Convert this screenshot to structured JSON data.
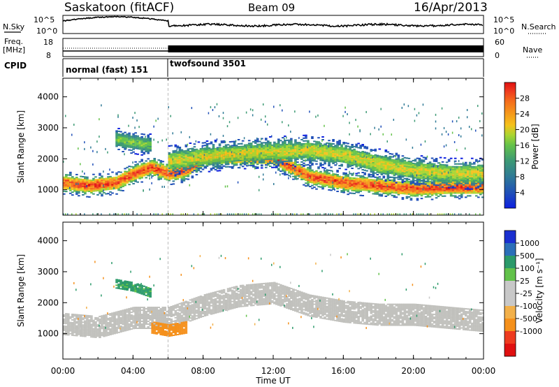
{
  "header": {
    "station": "Saskatoon (fitACF)",
    "beam": "Beam 09",
    "date": "16/Apr/2013"
  },
  "noise_panel": {
    "left_label": "N.Sky",
    "right_label": "N.Search",
    "left_ticks": [
      "10^5",
      "10^0"
    ],
    "right_ticks": [
      "10^5",
      "10^0"
    ]
  },
  "freq_panel": {
    "left_label_1": "Freq.",
    "left_label_2": "[MHz]",
    "left_ticks": [
      "18",
      "8"
    ],
    "right_label": "Nave",
    "right_ticks": [
      "60",
      "0"
    ]
  },
  "cpid": {
    "label": "CPID",
    "modes": [
      {
        "name": "normal (fast) 151",
        "start_hour": 0,
        "end_hour": 6
      },
      {
        "name": "twofsound 3501",
        "start_hour": 6,
        "end_hour": 24
      }
    ]
  },
  "power_panel": {
    "ylabel": "Slant Range [km]",
    "yticks": [
      "4000",
      "3000",
      "2000",
      "1000"
    ],
    "colorbar_label": "Power [dB]",
    "colorbar_ticks": [
      "28",
      "24",
      "20",
      "16",
      "12",
      "8",
      "4"
    ],
    "colors": [
      "#0d1fe0",
      "#1f4fb8",
      "#2f7a96",
      "#3d9a74",
      "#64c24a",
      "#a9d531",
      "#f5c21b",
      "#f59a1b",
      "#f56d1b",
      "#ee3b1f",
      "#e01010"
    ]
  },
  "velocity_panel": {
    "ylabel": "Slant Range [km]",
    "yticks": [
      "4000",
      "3000",
      "2000",
      "1000"
    ],
    "colorbar_label": "Velocity [m s⁻¹]",
    "colorbar_ticks": [
      "1000",
      "500",
      "100",
      "25",
      "-25",
      "-100",
      "-500",
      "-1000"
    ],
    "colors": [
      "#1a2fd0",
      "#1f5fa8",
      "#2b8a6a",
      "#56c23a",
      "#a8d49a",
      "#c8c8c8",
      "#c8c8c8",
      "#f2b04a",
      "#f5901b",
      "#f56d1b",
      "#ee3b1f",
      "#e01010"
    ],
    "ground_scatter": "#c0c0bc"
  },
  "xaxis": {
    "label": "Time UT",
    "ticks": [
      "00:00",
      "04:00",
      "08:00",
      "12:00",
      "16:00",
      "20:00",
      "00:00"
    ]
  },
  "chart_data": {
    "type": "heatmap",
    "title": "Saskatoon (fitACF) Beam 09 16/Apr/2013",
    "xlabel": "Time UT",
    "ylabel": "Slant Range [km]",
    "xlim_hours": [
      0,
      24
    ],
    "ylim_km": [
      180,
      4600
    ],
    "mode_change_hour": 6,
    "power_bands": [
      {
        "name": "main_echo",
        "points": [
          [
            0,
            1200
          ],
          [
            1.5,
            1100
          ],
          [
            3,
            1200
          ],
          [
            4,
            1500
          ],
          [
            5,
            1700
          ],
          [
            6,
            1500
          ],
          [
            7,
            1600
          ],
          [
            8,
            2000
          ],
          [
            10,
            2050
          ],
          [
            12,
            2000
          ],
          [
            13,
            1700
          ],
          [
            14,
            1400
          ],
          [
            16,
            1200
          ],
          [
            18,
            1100
          ],
          [
            20,
            1000
          ],
          [
            22,
            1050
          ],
          [
            24,
            1050
          ]
        ],
        "width_km": 180,
        "peak_db": 28
      },
      {
        "name": "upper_band",
        "points": [
          [
            6,
            1900
          ],
          [
            8,
            2050
          ],
          [
            10,
            2150
          ],
          [
            12,
            2200
          ],
          [
            14,
            2250
          ],
          [
            16,
            2100
          ],
          [
            18,
            1800
          ],
          [
            20,
            1600
          ],
          [
            22,
            1500
          ],
          [
            24,
            1500
          ]
        ],
        "width_km": 250,
        "peak_db": 18
      },
      {
        "name": "early_patch",
        "points": [
          [
            3,
            2600
          ],
          [
            4,
            2500
          ],
          [
            5,
            2400
          ]
        ],
        "width_km": 200,
        "peak_db": 14
      }
    ],
    "velocity_bands": [
      {
        "name": "ground_scatter",
        "points": [
          [
            0,
            1300
          ],
          [
            2,
            1200
          ],
          [
            4,
            1500
          ],
          [
            6,
            1500
          ],
          [
            8,
            1900
          ],
          [
            10,
            2200
          ],
          [
            12,
            2300
          ],
          [
            14,
            1900
          ],
          [
            16,
            1700
          ],
          [
            18,
            1600
          ],
          [
            20,
            1600
          ],
          [
            22,
            1500
          ],
          [
            24,
            1400
          ]
        ],
        "width_km": 700,
        "velocity": 0
      },
      {
        "name": "negative_flow",
        "points": [
          [
            5,
            1200
          ],
          [
            6,
            1100
          ],
          [
            7,
            1200
          ]
        ],
        "width_km": 400,
        "velocity": -300
      },
      {
        "name": "positive_patch",
        "points": [
          [
            3,
            2600
          ],
          [
            4,
            2500
          ],
          [
            5,
            2300
          ]
        ],
        "width_km": 300,
        "velocity": 150
      }
    ]
  }
}
